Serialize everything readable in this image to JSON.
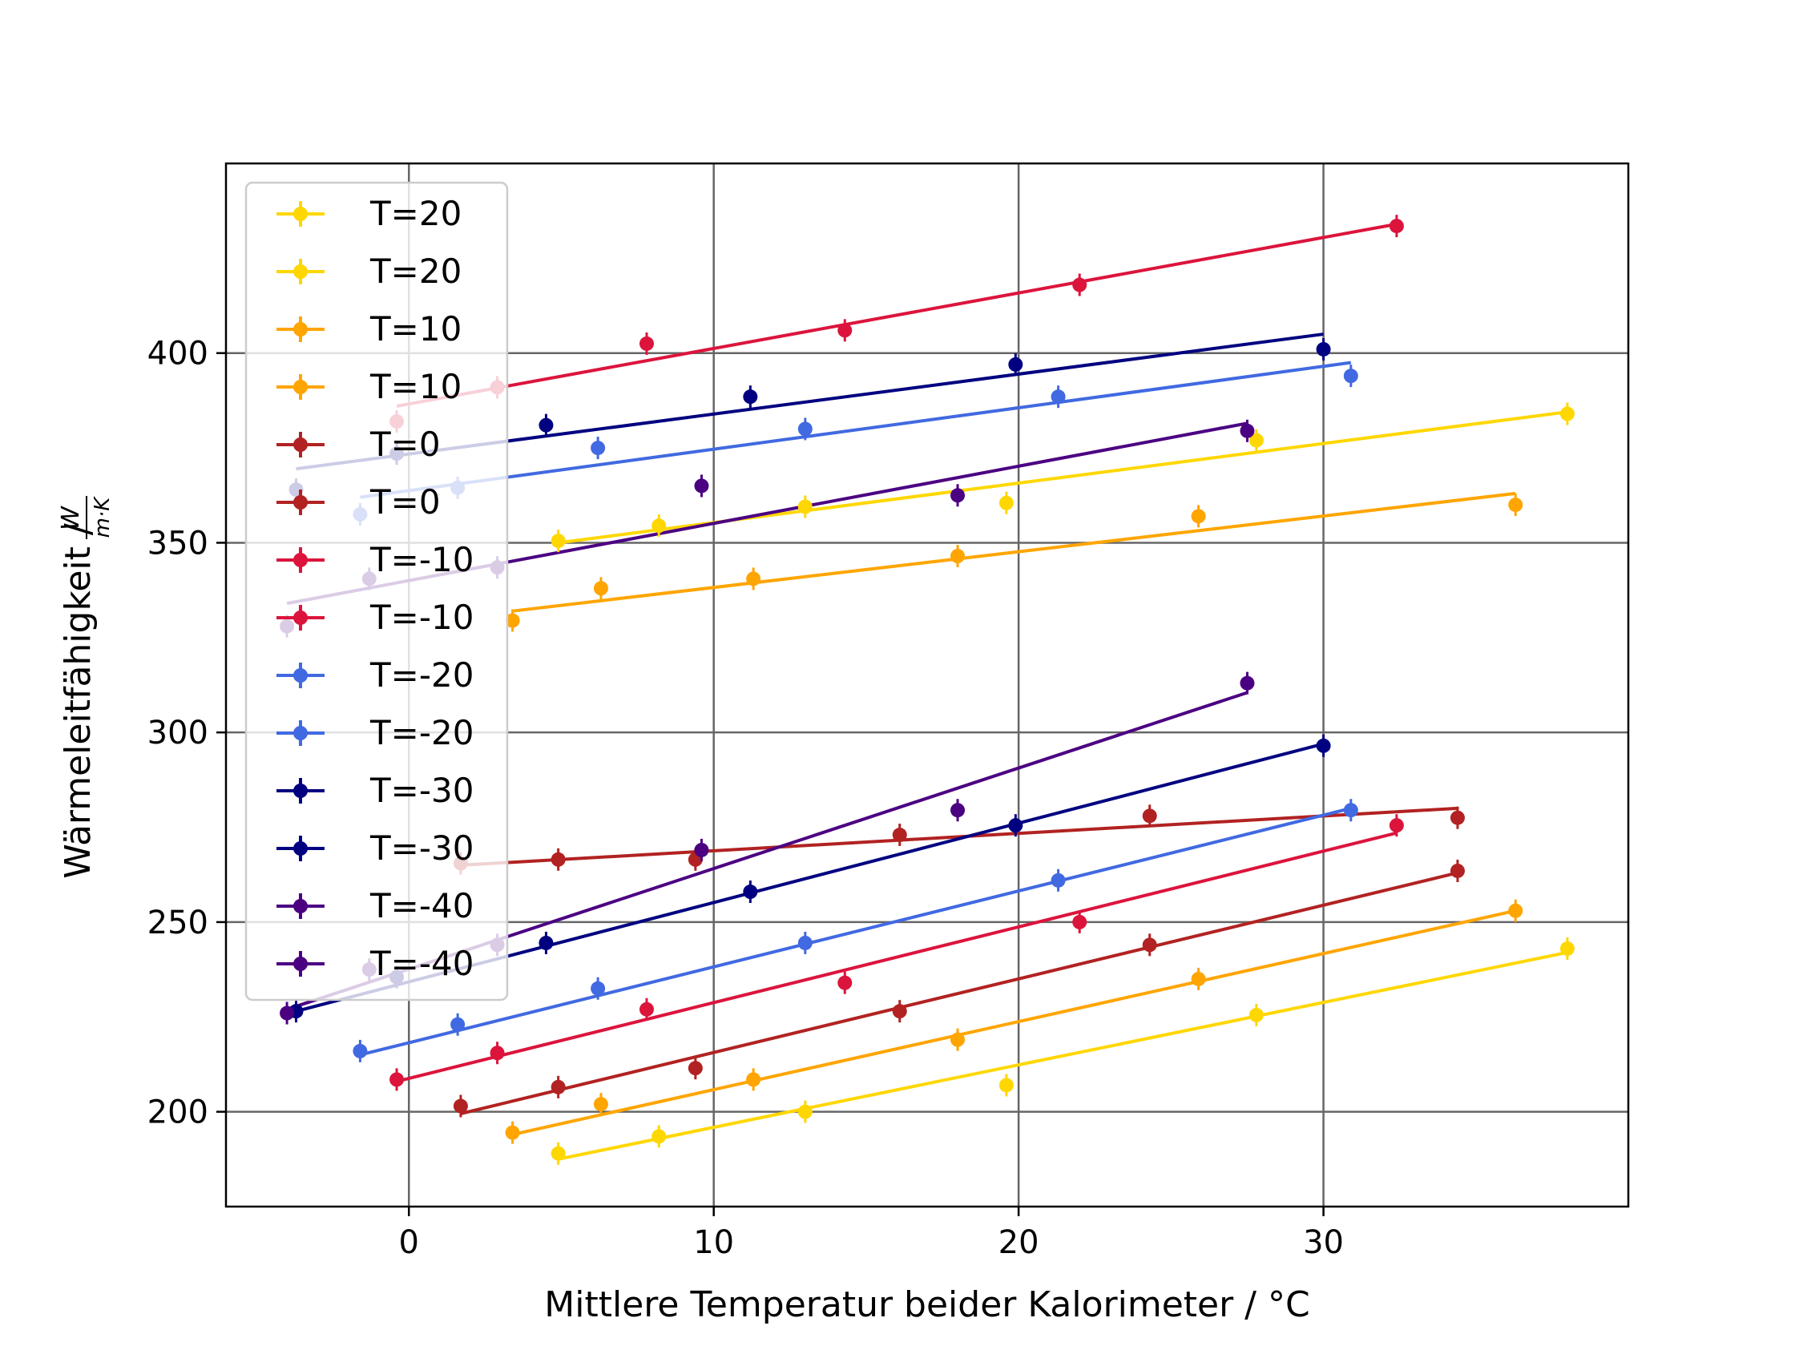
{
  "chart_data": {
    "type": "scatter",
    "title": "",
    "xlabel": "Mittlere Temperatur beider Kalorimeter / °C",
    "ylabel": "Wärmeleitfähigkeit / ",
    "ylabel_unit_num": "W",
    "ylabel_unit_den": "m·K",
    "xlim": [
      -6.0,
      40.0
    ],
    "ylim": [
      175,
      450
    ],
    "xticks": [
      0,
      10,
      20,
      30
    ],
    "yticks": [
      200,
      250,
      300,
      350,
      400
    ],
    "xtick_labels": [
      "0",
      "10",
      "20",
      "30"
    ],
    "ytick_labels": [
      "200",
      "250",
      "300",
      "350",
      "400"
    ],
    "grid": true,
    "legend": {
      "placement": "upper-left",
      "entries": [
        {
          "label": "T=20",
          "color": "#FFD700"
        },
        {
          "label": "T=20",
          "color": "#FFD700"
        },
        {
          "label": "T=10",
          "color": "#FFA500"
        },
        {
          "label": "T=10",
          "color": "#FFA500"
        },
        {
          "label": "T=0",
          "color": "#B22222"
        },
        {
          "label": "T=0",
          "color": "#B22222"
        },
        {
          "label": "T=-10",
          "color": "#DC143C"
        },
        {
          "label": "T=-10",
          "color": "#DC143C"
        },
        {
          "label": "T=-20",
          "color": "#4169E1"
        },
        {
          "label": "T=-20",
          "color": "#4169E1"
        },
        {
          "label": "T=-30",
          "color": "#000080"
        },
        {
          "label": "T=-30",
          "color": "#000080"
        },
        {
          "label": "T=-40",
          "color": "#4B0082"
        },
        {
          "label": "T=-40",
          "color": "#4B0082"
        }
      ]
    },
    "series": [
      {
        "color": "#FFD700",
        "x": [
          4.9,
          8.2,
          13.0,
          19.6,
          27.8,
          38.0
        ],
        "y": [
          350.5,
          354.5,
          359.5,
          360.5,
          377.0,
          384.0
        ],
        "fit": [
          [
            4.9,
            350.0
          ],
          [
            38.0,
            384.5
          ]
        ]
      },
      {
        "color": "#FFA500",
        "x": [
          3.4,
          6.3,
          11.3,
          18.0,
          25.9,
          36.3
        ],
        "y": [
          329.5,
          338.0,
          340.5,
          346.5,
          357.0,
          360.0
        ],
        "fit": [
          [
            3.4,
            332.0
          ],
          [
            36.3,
            363.0
          ]
        ]
      },
      {
        "color": "#DC143C",
        "x": [
          -0.4,
          2.9,
          7.8,
          14.3,
          22.0,
          32.4
        ],
        "y": [
          382.0,
          391.0,
          402.5,
          406.0,
          418.0,
          433.5
        ],
        "fit": [
          [
            -0.4,
            386.0
          ],
          [
            32.4,
            434.0
          ]
        ]
      },
      {
        "color": "#4169E1",
        "x": [
          -1.6,
          1.6,
          6.2,
          13.0,
          21.3,
          30.9
        ],
        "y": [
          357.5,
          364.5,
          375.0,
          380.0,
          388.5,
          394.0
        ],
        "fit": [
          [
            -1.6,
            362.0
          ],
          [
            30.9,
            397.5
          ]
        ]
      },
      {
        "color": "#000080",
        "x": [
          -3.7,
          -0.4,
          4.5,
          11.2,
          19.9,
          30.0
        ],
        "y": [
          364.0,
          373.5,
          381.0,
          388.5,
          397.0,
          401.0
        ],
        "fit": [
          [
            -3.7,
            369.5
          ],
          [
            30.0,
            405.0
          ]
        ]
      },
      {
        "color": "#4B0082",
        "x": [
          -4.0,
          -1.3,
          2.9,
          9.6,
          18.0,
          27.5
        ],
        "y": [
          328.0,
          340.5,
          343.5,
          365.0,
          362.5,
          379.5
        ],
        "fit": [
          [
            -4.0,
            334.0
          ],
          [
            27.5,
            381.5
          ]
        ]
      },
      {
        "color": "#FFD700",
        "x": [
          4.9,
          8.2,
          13.0,
          19.6,
          27.8,
          38.0
        ],
        "y": [
          189.0,
          193.5,
          200.0,
          207.0,
          225.5,
          243.0
        ],
        "fit": [
          [
            4.9,
            187.5
          ],
          [
            38.0,
            242.0
          ]
        ]
      },
      {
        "color": "#FFA500",
        "x": [
          3.4,
          6.3,
          11.3,
          18.0,
          25.9,
          36.3
        ],
        "y": [
          194.5,
          202.0,
          208.5,
          219.0,
          235.0,
          253.0
        ],
        "fit": [
          [
            3.4,
            194.0
          ],
          [
            36.3,
            253.0
          ]
        ]
      },
      {
        "color": "#B22222",
        "x": [
          1.7,
          4.9,
          9.4,
          16.1,
          24.3,
          34.4
        ],
        "y": [
          201.5,
          206.5,
          211.5,
          226.5,
          244.0,
          263.5
        ],
        "fit": [
          [
            1.7,
            199.5
          ],
          [
            34.4,
            263.0
          ]
        ]
      },
      {
        "color": "#B22222",
        "x": [
          1.7,
          4.9,
          9.4,
          16.1,
          24.3,
          34.4
        ],
        "y": [
          265.5,
          266.5,
          266.5,
          273.0,
          278.0,
          277.5
        ],
        "fit": [
          [
            1.7,
            265.0
          ],
          [
            34.4,
            280.0
          ]
        ]
      },
      {
        "color": "#DC143C",
        "x": [
          -0.4,
          2.9,
          7.8,
          14.3,
          22.0,
          32.4
        ],
        "y": [
          208.5,
          215.5,
          227.0,
          234.0,
          250.0,
          275.5
        ],
        "fit": [
          [
            -0.4,
            208.0
          ],
          [
            32.4,
            273.5
          ]
        ]
      },
      {
        "color": "#4169E1",
        "x": [
          -1.6,
          1.6,
          6.2,
          13.0,
          21.3,
          30.9
        ],
        "y": [
          216.0,
          223.0,
          232.5,
          244.5,
          261.0,
          279.5
        ],
        "fit": [
          [
            -1.6,
            215.0
          ],
          [
            30.9,
            280.0
          ]
        ]
      },
      {
        "color": "#000080",
        "x": [
          -3.7,
          -0.4,
          4.5,
          11.2,
          19.9,
          30.0
        ],
        "y": [
          226.5,
          235.5,
          244.5,
          258.0,
          275.5,
          296.5
        ],
        "fit": [
          [
            -3.7,
            226.5
          ],
          [
            30.0,
            297.0
          ]
        ]
      },
      {
        "color": "#4B0082",
        "x": [
          -4.0,
          -1.3,
          2.9,
          9.6,
          18.0,
          27.5
        ],
        "y": [
          226.0,
          237.5,
          244.0,
          269.0,
          279.5,
          313.0
        ],
        "fit": [
          [
            -4.0,
            227.0
          ],
          [
            27.5,
            310.5
          ]
        ]
      }
    ]
  }
}
